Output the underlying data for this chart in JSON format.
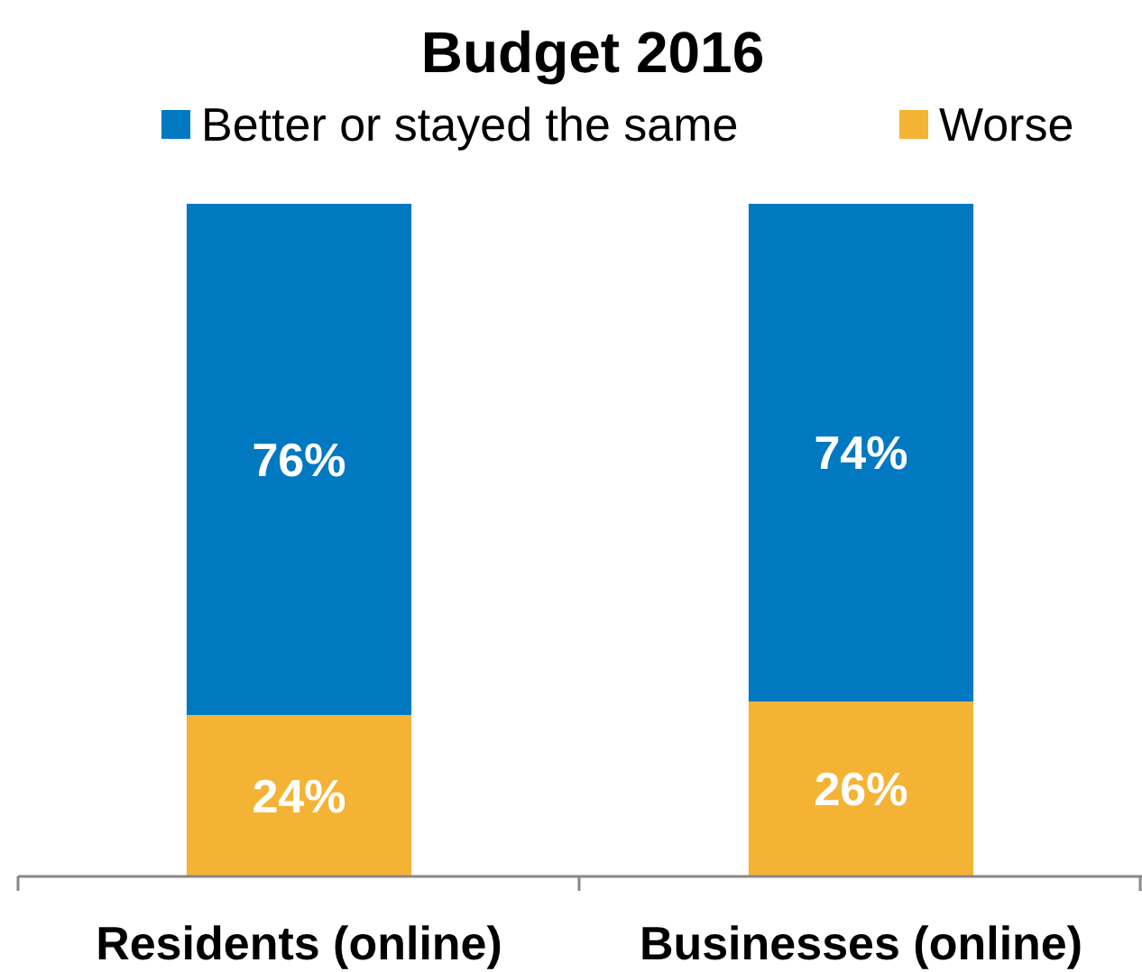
{
  "chart_data": {
    "type": "bar",
    "title": "Budget 2016",
    "categories": [
      "Residents (online)",
      "Businesses (online)"
    ],
    "stacked": true,
    "data_labels": true,
    "legend": "top",
    "series": [
      {
        "name": "Worse",
        "color": "#f5b335",
        "values": [
          24,
          26
        ],
        "value_labels": [
          "24%",
          "26%"
        ]
      },
      {
        "name": "Better or stayed the same",
        "color": "#0079c1",
        "values": [
          76,
          74
        ],
        "value_labels": [
          "76%",
          "74%"
        ]
      }
    ]
  }
}
